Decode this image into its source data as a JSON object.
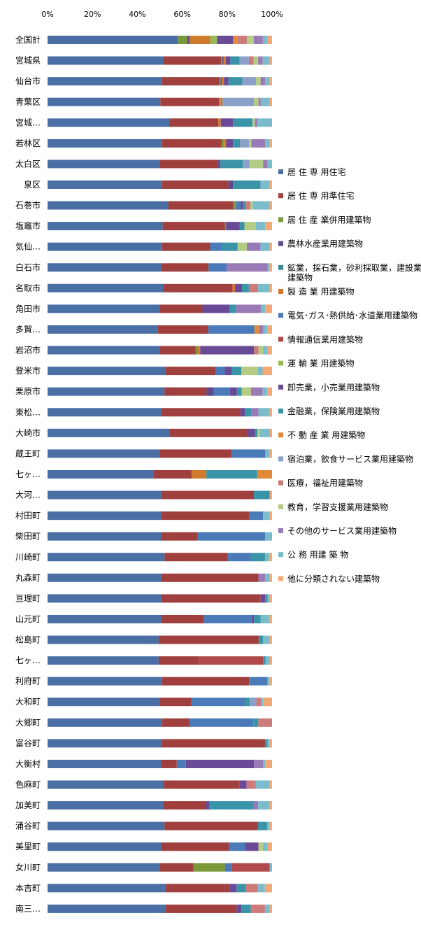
{
  "chart_data": {
    "type": "bar",
    "orientation": "horizontal",
    "stacked": "percent",
    "xlim": [
      0,
      100
    ],
    "x_ticks": [
      "0%",
      "20%",
      "40%",
      "60%",
      "80%",
      "100%"
    ],
    "grid": false,
    "legend_position": "right",
    "categories": [
      "全国計",
      "宮城県",
      "仙台市",
      "青葉区",
      "宮城…",
      "若林区",
      "太白区",
      "泉区",
      "石巻市",
      "塩竈市",
      "気仙…",
      "白石市",
      "名取市",
      "角田市",
      "多賀…",
      "岩沼市",
      "登米市",
      "栗原市",
      "東松…",
      "大崎市",
      "蔵王町",
      "七ヶ…",
      "大河…",
      "村田町",
      "柴田町",
      "川崎町",
      "丸森町",
      "亘理町",
      "山元町",
      "松島町",
      "七ヶ…",
      "利府町",
      "大和町",
      "大郷町",
      "富谷町",
      "大衡村",
      "色麻町",
      "加美町",
      "涌谷町",
      "美里町",
      "女川町",
      "本吉町",
      "南三…"
    ],
    "series": [
      {
        "name": "居 住 専 用住宅",
        "color": "#4a6fa5",
        "values": [
          57,
          50,
          50,
          50,
          50,
          50,
          50,
          50,
          50,
          50,
          50,
          50,
          50,
          50,
          50,
          50,
          50,
          50,
          50,
          50,
          50,
          50,
          50,
          50,
          50,
          50,
          50,
          50,
          50,
          50,
          50,
          50,
          50,
          50,
          50,
          50,
          50,
          50,
          50,
          50,
          50,
          50,
          50
        ]
      },
      {
        "name": "居 住 専 用準住宅",
        "color": "#a0403e",
        "values": [
          0,
          25,
          25,
          26,
          20,
          26,
          26,
          29,
          27,
          27,
          21,
          21,
          30,
          19,
          23,
          16,
          21,
          18,
          35,
          32,
          32,
          18,
          41,
          39,
          16,
          27,
          43,
          44,
          19,
          45,
          18,
          38,
          14,
          12,
          46,
          7,
          33,
          18,
          40,
          30,
          15,
          27,
          30
        ]
      },
      {
        "name": "居 住 産 業併用建築物",
        "color": "#7a9a3a",
        "values": [
          4,
          0.5,
          0.5,
          0.5,
          0,
          1,
          0,
          0,
          1,
          0.5,
          0,
          0,
          0,
          0,
          0,
          1,
          0,
          0,
          0,
          0,
          0,
          0,
          0,
          0,
          0,
          0,
          0,
          0,
          0,
          0,
          0,
          0,
          0,
          0,
          0,
          0,
          0,
          0,
          0,
          0,
          14,
          0,
          0
        ]
      },
      {
        "name": "農林水産業用建築物",
        "color": "#5e4a8a",
        "values": [
          1,
          0.5,
          0.5,
          0,
          0,
          0,
          0,
          2,
          0,
          0,
          0,
          0,
          0,
          0,
          0,
          0,
          0,
          3,
          0,
          0,
          0,
          0,
          0,
          0,
          0,
          0,
          0,
          0,
          0,
          0,
          0,
          0,
          0,
          0,
          0,
          0,
          0,
          0,
          0,
          0,
          0,
          0,
          0
        ]
      },
      {
        "name": "鉱業，採石業，砂利採取業，建設業用建築物",
        "color": "#3a8a9a",
        "values": [
          0,
          0,
          0,
          0,
          0,
          0,
          0,
          0,
          0,
          0,
          0,
          0,
          0,
          0,
          0,
          0,
          0,
          0,
          0,
          0,
          0,
          0,
          0,
          0,
          0,
          0,
          0,
          0,
          0,
          0,
          0,
          0,
          0,
          0,
          0,
          0,
          0,
          0,
          0,
          0,
          0,
          0,
          0
        ]
      },
      {
        "name": "製 造 業 用建築物",
        "color": "#d07a2e",
        "values": [
          9,
          1,
          1,
          1,
          1,
          1,
          0,
          0,
          0,
          0,
          0,
          0,
          1,
          0,
          0,
          1,
          0,
          0,
          0,
          0,
          0,
          7,
          0,
          0,
          0,
          0,
          0,
          0,
          0,
          0,
          0,
          0,
          0,
          0,
          0,
          0,
          0,
          0,
          0,
          0,
          0,
          0,
          0
        ]
      },
      {
        "name": "電気･ガス･熱供給･水道業用建築物",
        "color": "#4a7ab8",
        "values": [
          0,
          0,
          0,
          0,
          0,
          0,
          0,
          0,
          2,
          0,
          5,
          8,
          0,
          0,
          21,
          0,
          4,
          7,
          0,
          0,
          15,
          0,
          0,
          6,
          30,
          10,
          0,
          0,
          21,
          0,
          0,
          8,
          24,
          28,
          0,
          4,
          0,
          0,
          0,
          7,
          3,
          0,
          0
        ]
      },
      {
        "name": "情報通信業用建築物",
        "color": "#b04a4a",
        "values": [
          0,
          0,
          0,
          0,
          0,
          0,
          0,
          0,
          0,
          0,
          0,
          0,
          0,
          0,
          0,
          0,
          0,
          0,
          0,
          0,
          0,
          0,
          0,
          0,
          0,
          0,
          0,
          0,
          0,
          0,
          29,
          0,
          0,
          0,
          0,
          0,
          0,
          0,
          0,
          0,
          17,
          0,
          0
        ]
      },
      {
        "name": "運 輸 業 用建築物",
        "color": "#9aba5a",
        "values": [
          3,
          0,
          0,
          0,
          0,
          0,
          0,
          0,
          0,
          0,
          0,
          0,
          0,
          0,
          0,
          0,
          0,
          0,
          0,
          0,
          0,
          0,
          0,
          0,
          0,
          0,
          0,
          0,
          0,
          0,
          0,
          0,
          0,
          0,
          0,
          0,
          0,
          0,
          0,
          0,
          0,
          0,
          0
        ]
      },
      {
        "name": "卸売業，小売業用建築物",
        "color": "#6a4a96",
        "values": [
          7,
          2,
          2,
          0,
          5,
          3,
          1,
          0,
          1,
          6,
          0,
          0,
          3,
          12,
          0,
          24,
          3,
          3,
          2,
          3,
          0,
          0,
          0,
          0,
          0,
          0,
          0,
          2,
          1,
          0,
          0,
          0,
          0,
          0,
          0,
          30,
          3,
          2,
          0,
          6,
          0,
          3,
          2
        ]
      },
      {
        "name": "金融業，保険業用建築物",
        "color": "#3a94a8",
        "values": [
          0,
          4,
          6,
          0,
          8,
          3,
          10,
          12,
          1,
          2,
          7,
          0,
          3,
          3,
          0,
          0,
          4,
          2,
          3,
          1,
          0,
          24,
          7,
          0,
          0,
          6,
          0,
          1,
          3,
          2,
          1,
          0,
          2,
          2,
          1,
          0,
          0,
          19,
          4,
          0,
          0,
          4,
          4
        ]
      },
      {
        "name": "不 動 産 業 用建築物",
        "color": "#e08a3a",
        "values": [
          2,
          0,
          0,
          0,
          0,
          0,
          0,
          0,
          0,
          0,
          0,
          0,
          0,
          0,
          2,
          0,
          0,
          0,
          0,
          0,
          0,
          7,
          0,
          0,
          0,
          0,
          0,
          0,
          0,
          0,
          0,
          0,
          0,
          0,
          0,
          0,
          0,
          0,
          0,
          0,
          0,
          0,
          0
        ]
      },
      {
        "name": "宿泊業，飲食サービス業用建築物",
        "color": "#8aa0c8",
        "values": [
          0,
          4,
          6,
          14,
          0,
          4,
          3,
          0,
          0,
          0,
          0,
          0,
          0,
          0,
          0,
          0,
          0,
          0,
          0,
          0,
          0,
          0,
          0,
          0,
          0,
          0,
          0,
          0,
          0,
          0,
          0,
          0,
          3,
          0,
          0,
          0,
          0,
          0,
          0,
          0,
          0,
          0,
          0
        ]
      },
      {
        "name": "医療，福祉用建築物",
        "color": "#cc7a7a",
        "values": [
          4,
          2,
          0,
          0,
          0,
          0,
          0,
          0,
          2,
          0,
          0,
          0,
          4,
          0,
          0,
          2,
          0,
          0,
          0,
          0,
          0,
          0,
          0,
          0,
          0,
          0,
          0,
          0,
          0,
          0,
          0,
          0,
          2,
          6,
          0,
          0,
          4,
          0,
          0,
          0,
          0,
          5,
          6
        ]
      },
      {
        "name": "教育，学習支援業用建築物",
        "color": "#b4cc84",
        "values": [
          3,
          2,
          2,
          2,
          1,
          1,
          6,
          0,
          1,
          5,
          4,
          0,
          0,
          0,
          0,
          2,
          7,
          4,
          0,
          1,
          0,
          0,
          0,
          0,
          0,
          0,
          0,
          0,
          0,
          0,
          0,
          0,
          0,
          0,
          0,
          0,
          0,
          0,
          0,
          2,
          0,
          0,
          0
        ]
      },
      {
        "name": "その他のサービス業用建築物",
        "color": "#9a7ab4",
        "values": [
          4,
          2,
          2,
          1,
          1,
          6,
          2,
          0,
          0,
          0,
          6,
          18,
          0,
          11,
          2,
          0,
          0,
          5,
          3,
          0,
          0,
          0,
          0,
          0,
          0,
          0,
          3,
          0,
          0,
          0,
          0,
          0,
          0,
          0,
          0,
          4,
          0,
          2,
          0,
          0,
          0,
          0,
          0
        ]
      },
      {
        "name": "公 務 用建 築 物",
        "color": "#7abccc",
        "values": [
          2,
          3,
          2,
          4,
          6,
          2,
          2,
          4,
          7,
          4,
          4,
          1,
          5,
          2,
          2,
          2,
          2,
          2,
          5,
          4,
          2,
          0,
          0,
          3,
          3,
          2,
          2,
          1,
          4,
          3,
          2,
          1,
          1,
          0,
          1,
          1,
          6,
          5,
          1,
          2,
          1,
          3,
          2
        ]
      },
      {
        "name": "他に分類されない建築物",
        "color": "#f4a874",
        "values": [
          2,
          1,
          1,
          1,
          0,
          1,
          0,
          1,
          1,
          3,
          1,
          1,
          1,
          3,
          2,
          2,
          4,
          2,
          1,
          1,
          1,
          0,
          1,
          1,
          0,
          1,
          1,
          1,
          1,
          1,
          1,
          1,
          4,
          0,
          1,
          3,
          1,
          1,
          1,
          2,
          0,
          3,
          1
        ]
      }
    ]
  }
}
